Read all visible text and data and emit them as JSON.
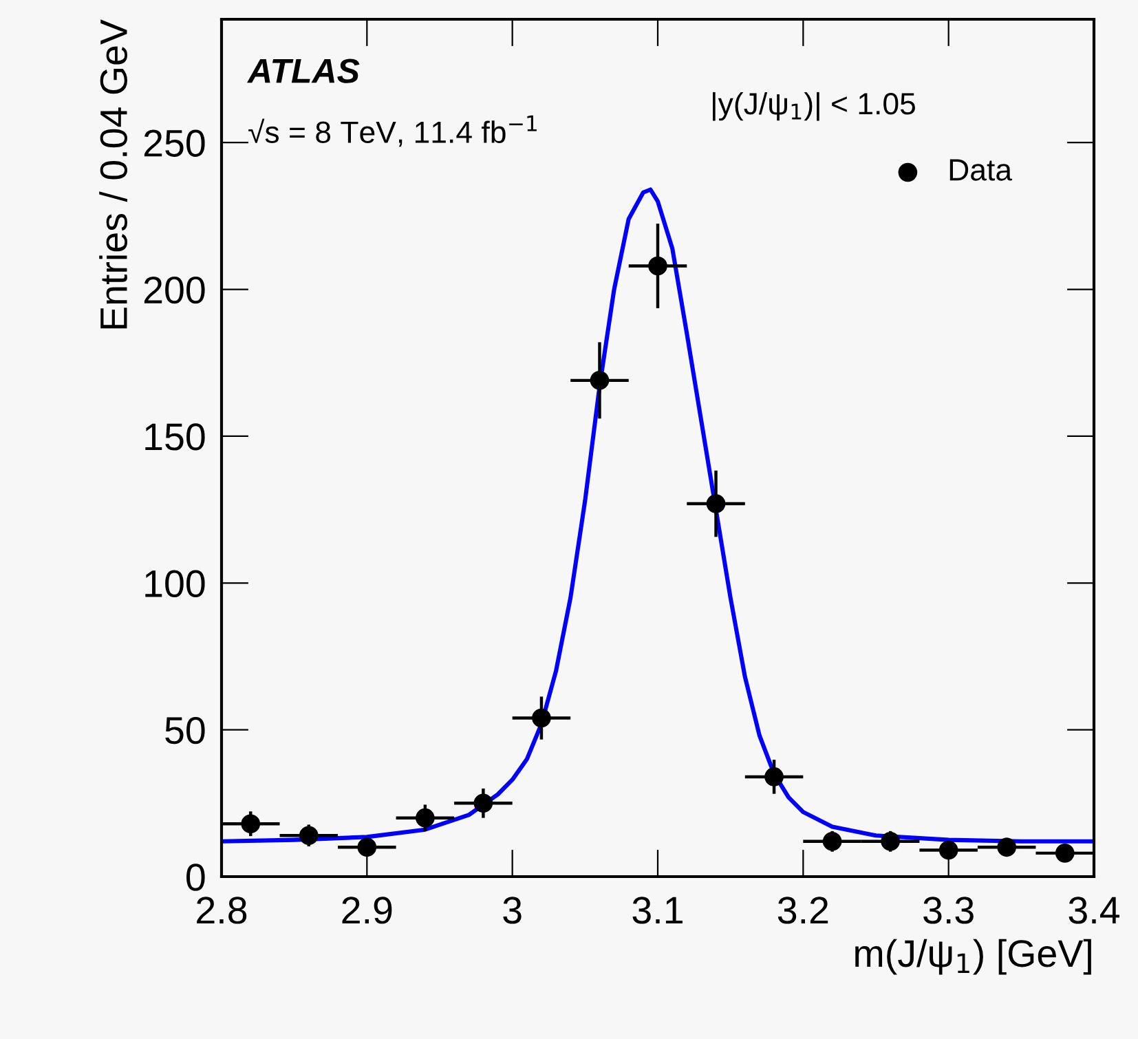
{
  "chart_data": {
    "type": "scatter",
    "xlabel": "m(J/ψ$_{1}$) [GeV]",
    "ylabel": "Entries / 0.04 GeV",
    "annotations": [
      "ATLAS",
      "√s = 8 TeV, 11.4 fb$^{−1}$",
      "|y(J/ψ$_{1}$)| < 1.05"
    ],
    "xlim": [
      2.8,
      3.4
    ],
    "xticks": [
      2.8,
      2.9,
      3,
      3.1,
      3.2,
      3.3,
      3.4
    ],
    "ylim": [
      0,
      292
    ],
    "yticks": [
      0,
      50,
      100,
      150,
      200,
      250
    ],
    "grid": false,
    "legend": "top right",
    "series": [
      {
        "name": "Data",
        "color": "#000000",
        "marker": "circle",
        "x": [
          2.82,
          2.86,
          2.9,
          2.94,
          2.98,
          3.02,
          3.06,
          3.1,
          3.14,
          3.18,
          3.22,
          3.26,
          3.3,
          3.34,
          3.38
        ],
        "values": [
          18,
          14,
          10,
          20,
          25,
          54,
          169,
          208,
          127,
          34,
          12,
          12,
          9,
          10,
          8
        ],
        "errors": [
          4.2,
          3.7,
          3.2,
          4.5,
          5,
          7.3,
          13,
          14.4,
          11.3,
          5.8,
          3.5,
          3.5,
          3,
          3.2,
          2.8
        ],
        "xerrors": [
          0.02,
          0.02,
          0.02,
          0.02,
          0.02,
          0.02,
          0.02,
          0.02,
          0.02,
          0.02,
          0.02,
          0.02,
          0.02,
          0.02,
          0.02
        ]
      },
      {
        "type": "line",
        "color": "#0000ff",
        "marker": "none",
        "line_style": "solid",
        "x": [
          2.8,
          2.85,
          2.9,
          2.94,
          2.97,
          2.99,
          3.0,
          3.01,
          3.02,
          3.03,
          3.04,
          3.05,
          3.06,
          3.07,
          3.08,
          3.09,
          3.095,
          3.1,
          3.11,
          3.12,
          3.13,
          3.14,
          3.15,
          3.16,
          3.17,
          3.18,
          3.19,
          3.2,
          3.22,
          3.25,
          3.3,
          3.35,
          3.4
        ],
        "values": [
          12,
          12.5,
          13.5,
          16,
          21,
          28,
          33,
          40,
          52,
          70,
          95,
          128,
          167,
          200,
          224,
          233,
          234,
          230,
          214,
          185,
          155,
          125,
          95,
          68,
          48,
          35,
          27,
          22,
          17,
          14,
          12.5,
          12,
          12
        ]
      }
    ]
  }
}
